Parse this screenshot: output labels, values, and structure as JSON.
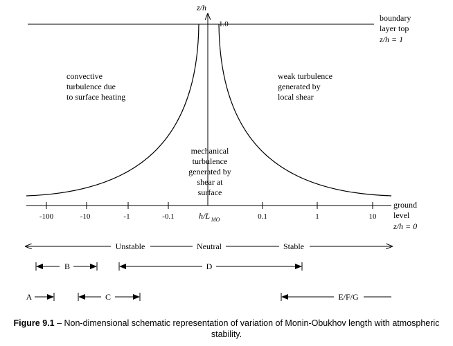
{
  "axis": {
    "y_label": "z/h",
    "y_tick": "1.0",
    "x_center_label": "h/L",
    "x_center_sub": "MO",
    "tick_labels": [
      "-100",
      "-10",
      "-1",
      "-0.1",
      "0.1",
      "1",
      "10"
    ]
  },
  "boundary": {
    "line1": "boundary",
    "line2": "layer top",
    "line3": "z/h  =  1"
  },
  "ground": {
    "line1": "ground",
    "line2": "level",
    "line3": "z/h  =  0"
  },
  "regions": {
    "left": [
      "convective",
      "turbulence  due",
      "to  surface  heating"
    ],
    "right": [
      "weak  turbulence",
      "generated  by",
      "local  shear"
    ],
    "center": [
      "mechanical",
      "turbulence",
      "generated  by",
      "shear  at",
      "surface"
    ]
  },
  "stability": {
    "unstable": "Unstable",
    "neutral": "Neutral",
    "stable": "Stable"
  },
  "classes": {
    "A": "A",
    "B": "B",
    "C": "C",
    "D": "D",
    "EFG": "E/F/G"
  },
  "caption": {
    "prefix": "Figure 9.1",
    "text": " – Non-dimensional schematic representation of variation of Monin-Obukhov length with atmospheric stability."
  }
}
